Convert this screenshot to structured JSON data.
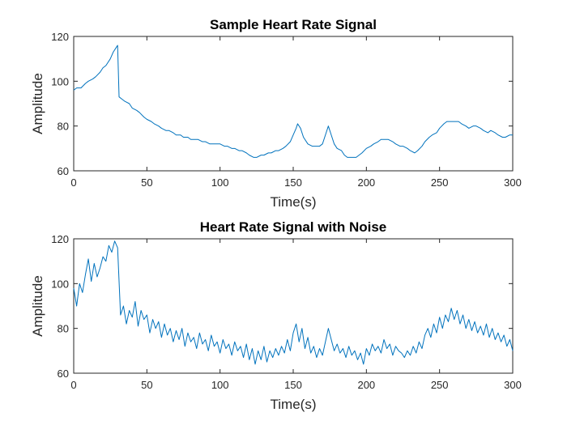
{
  "chart_data": [
    {
      "type": "line",
      "title": "Sample Heart Rate Signal",
      "xlabel": "Time(s)",
      "ylabel": "Amplitude",
      "xlim": [
        0,
        300
      ],
      "ylim": [
        60,
        120
      ],
      "xticks": [
        0,
        50,
        100,
        150,
        200,
        250,
        300
      ],
      "yticks": [
        60,
        80,
        100,
        120
      ],
      "grid": false,
      "series": [
        {
          "color": "#0072BD",
          "x": [
            0,
            2,
            5,
            8,
            10,
            13,
            15,
            18,
            20,
            22,
            25,
            27,
            29,
            30,
            31,
            33,
            35,
            38,
            40,
            43,
            45,
            48,
            50,
            53,
            55,
            58,
            60,
            63,
            65,
            68,
            70,
            73,
            75,
            78,
            80,
            83,
            85,
            88,
            90,
            93,
            95,
            98,
            100,
            103,
            105,
            108,
            110,
            113,
            115,
            118,
            120,
            123,
            125,
            128,
            130,
            133,
            135,
            138,
            140,
            143,
            145,
            148,
            150,
            152,
            153,
            155,
            157,
            160,
            163,
            165,
            168,
            170,
            172,
            174,
            176,
            178,
            180,
            183,
            185,
            187,
            190,
            193,
            195,
            197,
            200,
            203,
            205,
            208,
            210,
            213,
            215,
            218,
            220,
            223,
            225,
            228,
            230,
            233,
            235,
            238,
            240,
            243,
            245,
            248,
            250,
            253,
            255,
            258,
            260,
            263,
            265,
            268,
            270,
            273,
            275,
            278,
            280,
            283,
            285,
            288,
            290,
            293,
            295,
            298,
            300
          ],
          "values": [
            96,
            97,
            97,
            99,
            100,
            101,
            102,
            104,
            106,
            107,
            110,
            113,
            115,
            116,
            93,
            92,
            91,
            90,
            88,
            87,
            86,
            84,
            83,
            82,
            81,
            80,
            79,
            78,
            78,
            77,
            76,
            76,
            75,
            75,
            74,
            74,
            74,
            73,
            73,
            72,
            72,
            72,
            72,
            71,
            71,
            70,
            70,
            69,
            69,
            68,
            67,
            66,
            66,
            67,
            67,
            68,
            68,
            69,
            69,
            70,
            71,
            73,
            76,
            79,
            81,
            79,
            75,
            72,
            71,
            71,
            71,
            72,
            76,
            80,
            76,
            72,
            70,
            69,
            67,
            66,
            66,
            66,
            67,
            68,
            70,
            71,
            72,
            73,
            74,
            74,
            74,
            73,
            72,
            71,
            71,
            70,
            69,
            68,
            69,
            71,
            73,
            75,
            76,
            77,
            79,
            81,
            82,
            82,
            82,
            82,
            81,
            80,
            79,
            80,
            80,
            79,
            78,
            77,
            78,
            77,
            76,
            75,
            75,
            76,
            76
          ]
        }
      ]
    },
    {
      "type": "line",
      "title": "Heart Rate Signal with Noise",
      "xlabel": "Time(s)",
      "ylabel": "Amplitude",
      "xlim": [
        0,
        300
      ],
      "ylim": [
        60,
        120
      ],
      "xticks": [
        0,
        50,
        100,
        150,
        200,
        250,
        300
      ],
      "yticks": [
        60,
        80,
        100,
        120
      ],
      "grid": false,
      "series": [
        {
          "color": "#0072BD",
          "x": [
            0,
            2,
            4,
            6,
            8,
            10,
            12,
            14,
            16,
            18,
            20,
            22,
            24,
            26,
            28,
            30,
            32,
            34,
            36,
            38,
            40,
            42,
            44,
            46,
            48,
            50,
            52,
            54,
            56,
            58,
            60,
            62,
            64,
            66,
            68,
            70,
            72,
            74,
            76,
            78,
            80,
            82,
            84,
            86,
            88,
            90,
            92,
            94,
            96,
            98,
            100,
            102,
            104,
            106,
            108,
            110,
            112,
            114,
            116,
            118,
            120,
            122,
            124,
            126,
            128,
            130,
            132,
            134,
            136,
            138,
            140,
            142,
            144,
            146,
            148,
            150,
            152,
            154,
            156,
            158,
            160,
            162,
            164,
            166,
            168,
            170,
            172,
            174,
            176,
            178,
            180,
            182,
            184,
            186,
            188,
            190,
            192,
            194,
            196,
            198,
            200,
            202,
            204,
            206,
            208,
            210,
            212,
            214,
            216,
            218,
            220,
            222,
            224,
            226,
            228,
            230,
            232,
            234,
            236,
            238,
            240,
            242,
            244,
            246,
            248,
            250,
            252,
            254,
            256,
            258,
            260,
            262,
            264,
            266,
            268,
            270,
            272,
            274,
            276,
            278,
            280,
            282,
            284,
            286,
            288,
            290,
            292,
            294,
            296,
            298,
            300
          ],
          "values": [
            98,
            90,
            100,
            96,
            104,
            111,
            101,
            109,
            103,
            107,
            112,
            110,
            117,
            114,
            119,
            116,
            86,
            90,
            82,
            88,
            85,
            92,
            81,
            88,
            84,
            86,
            78,
            84,
            80,
            83,
            76,
            82,
            77,
            80,
            74,
            79,
            75,
            80,
            72,
            78,
            74,
            76,
            71,
            78,
            73,
            75,
            70,
            77,
            72,
            74,
            69,
            75,
            71,
            73,
            68,
            74,
            70,
            72,
            67,
            73,
            66,
            71,
            64,
            70,
            66,
            72,
            65,
            70,
            67,
            71,
            68,
            72,
            69,
            75,
            70,
            78,
            82,
            74,
            80,
            71,
            76,
            69,
            72,
            67,
            71,
            68,
            74,
            80,
            75,
            70,
            73,
            69,
            71,
            67,
            72,
            68,
            70,
            66,
            69,
            64,
            71,
            68,
            73,
            70,
            72,
            69,
            75,
            71,
            73,
            68,
            72,
            70,
            69,
            67,
            70,
            68,
            72,
            69,
            74,
            71,
            77,
            80,
            76,
            82,
            78,
            85,
            80,
            86,
            83,
            89,
            84,
            88,
            82,
            86,
            80,
            84,
            79,
            83,
            78,
            81,
            77,
            82,
            76,
            80,
            75,
            78,
            74,
            77,
            72,
            75,
            70
          ]
        }
      ]
    }
  ]
}
